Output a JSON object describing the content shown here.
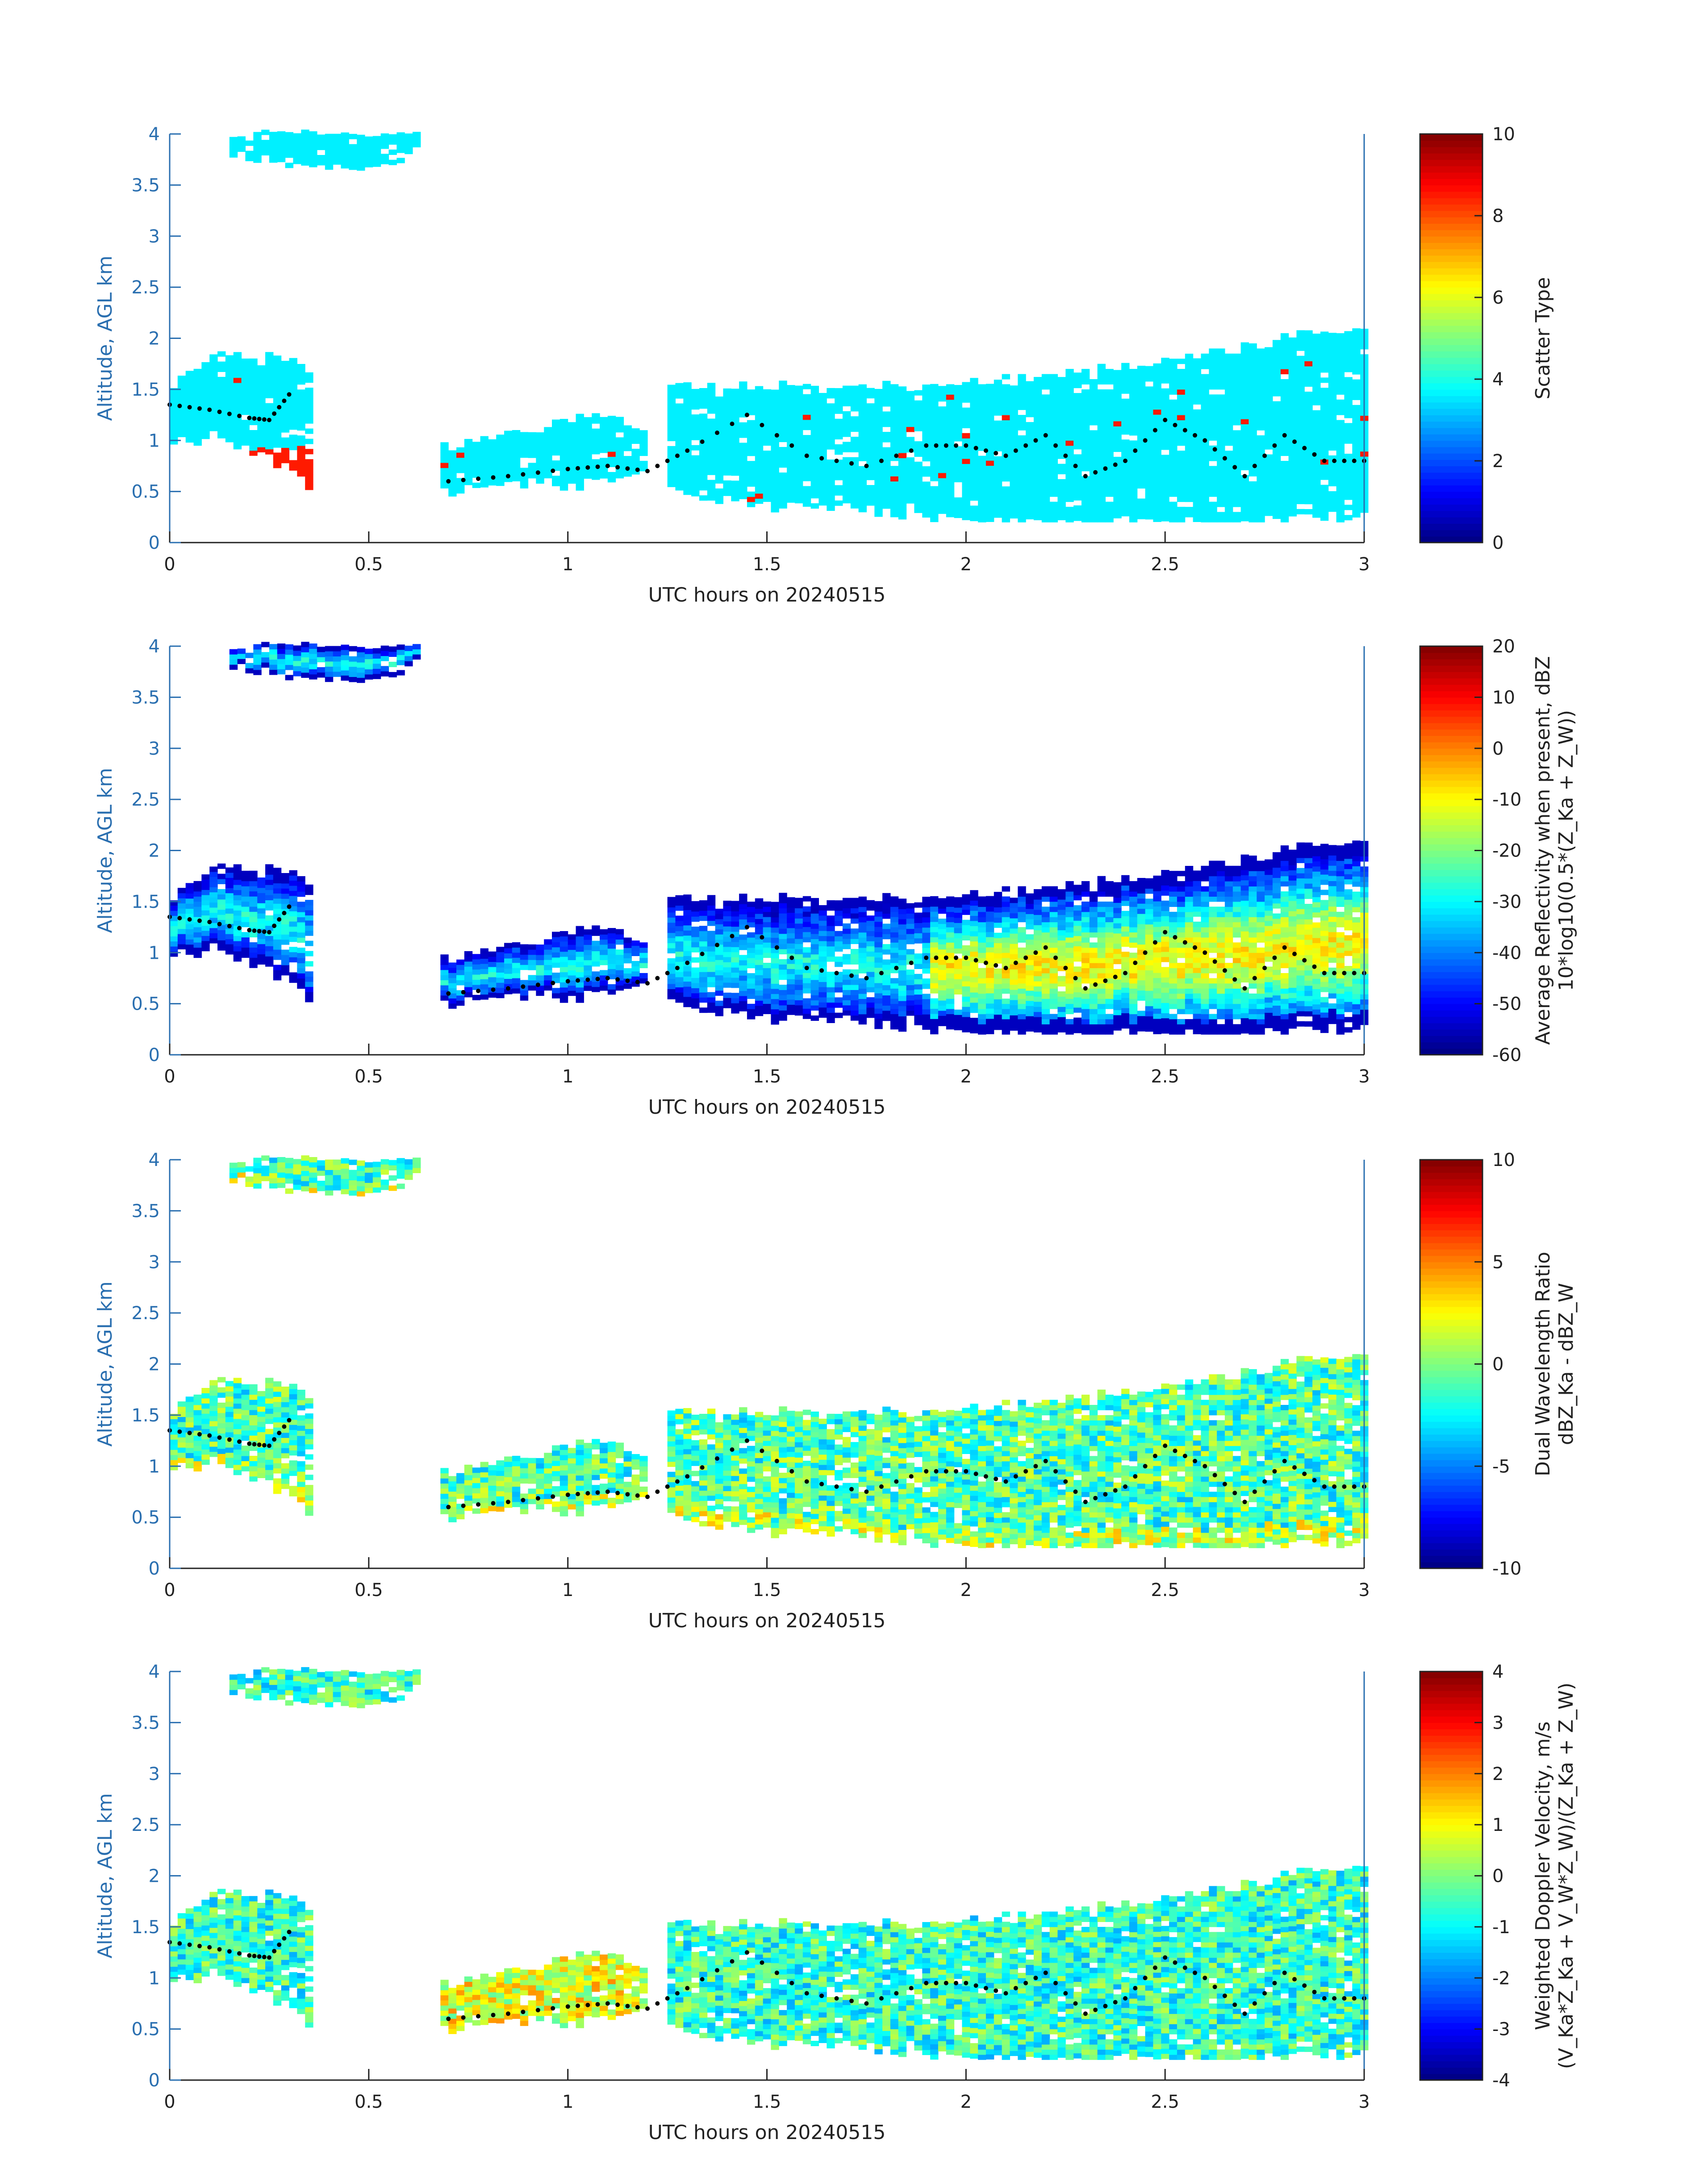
{
  "figure": {
    "panels": [
      {
        "id": "scatter",
        "chart_data": {
          "type": "heatmap",
          "title": "",
          "xlabel": "UTC hours on 20240515",
          "ylabel": "Altitude, AGL km",
          "xlim": [
            0,
            3
          ],
          "ylim": [
            0,
            4
          ],
          "xticks": [
            0,
            0.5,
            1,
            1.5,
            2,
            2.5,
            3
          ],
          "xticklabels": [
            "0",
            "0.5",
            "1",
            "1.5",
            "2",
            "2.5",
            "3"
          ],
          "yticks": [
            0,
            0.5,
            1,
            1.5,
            2,
            2.5,
            3,
            3.5,
            4
          ],
          "yticklabels": [
            "0",
            "0.5",
            "1",
            "1.5",
            "2",
            "2.5",
            "3",
            "3.5",
            "4"
          ],
          "colorbar": {
            "label_lines": [
              "Scatter Type"
            ],
            "clim": [
              0,
              10
            ],
            "ticks": [
              0,
              2,
              4,
              6,
              8,
              10
            ],
            "ticklabels": [
              "0",
              "2",
              "4",
              "6",
              "8",
              "10"
            ]
          },
          "colormap": "jet",
          "fill_mode": "scatter",
          "cloud_base_markers": true
        }
      },
      {
        "id": "reflectivity",
        "chart_data": {
          "type": "heatmap",
          "title": "",
          "xlabel": "UTC hours on 20240515",
          "ylabel": "Altitude, AGL km",
          "xlim": [
            0,
            3
          ],
          "ylim": [
            0,
            4
          ],
          "xticks": [
            0,
            0.5,
            1,
            1.5,
            2,
            2.5,
            3
          ],
          "xticklabels": [
            "0",
            "0.5",
            "1",
            "1.5",
            "2",
            "2.5",
            "3"
          ],
          "yticks": [
            0,
            0.5,
            1,
            1.5,
            2,
            2.5,
            3,
            3.5,
            4
          ],
          "yticklabels": [
            "0",
            "0.5",
            "1",
            "1.5",
            "2",
            "2.5",
            "3",
            "3.5",
            "4"
          ],
          "colorbar": {
            "label_lines": [
              "Average Reflectivity when present, dBZ",
              "10*log10(0.5*(Z_Ka + Z_W))"
            ],
            "clim": [
              -60,
              20
            ],
            "ticks": [
              -60,
              -50,
              -40,
              -30,
              -20,
              -10,
              0,
              10,
              20
            ],
            "ticklabels": [
              "-60",
              "-50",
              "-40",
              "-30",
              "-20",
              "-10",
              "0",
              "10",
              "20"
            ]
          },
          "colormap": "jet",
          "fill_mode": "refl",
          "cloud_base_markers": true
        }
      },
      {
        "id": "dwr",
        "chart_data": {
          "type": "heatmap",
          "title": "",
          "xlabel": "UTC hours on 20240515",
          "ylabel": "Altitude, AGL km",
          "xlim": [
            0,
            3
          ],
          "ylim": [
            0,
            4
          ],
          "xticks": [
            0,
            0.5,
            1,
            1.5,
            2,
            2.5,
            3
          ],
          "xticklabels": [
            "0",
            "0.5",
            "1",
            "1.5",
            "2",
            "2.5",
            "3"
          ],
          "yticks": [
            0,
            0.5,
            1,
            1.5,
            2,
            2.5,
            3,
            3.5,
            4
          ],
          "yticklabels": [
            "0",
            "0.5",
            "1",
            "1.5",
            "2",
            "2.5",
            "3",
            "3.5",
            "4"
          ],
          "colorbar": {
            "label_lines": [
              "Dual Wavelength Ratio",
              "dBZ_Ka - dBZ_W"
            ],
            "clim": [
              -10,
              10
            ],
            "ticks": [
              -10,
              -5,
              0,
              5,
              10
            ],
            "ticklabels": [
              "-10",
              "-5",
              "0",
              "5",
              "10"
            ]
          },
          "colormap": "jet",
          "fill_mode": "dwr",
          "cloud_base_markers": true
        }
      },
      {
        "id": "velocity",
        "chart_data": {
          "type": "heatmap",
          "title": "",
          "xlabel": "UTC hours on 20240515",
          "ylabel": "Altitude, AGL km",
          "xlim": [
            0,
            3
          ],
          "ylim": [
            0,
            4
          ],
          "xticks": [
            0,
            0.5,
            1,
            1.5,
            2,
            2.5,
            3
          ],
          "xticklabels": [
            "0",
            "0.5",
            "1",
            "1.5",
            "2",
            "2.5",
            "3"
          ],
          "yticks": [
            0,
            0.5,
            1,
            1.5,
            2,
            2.5,
            3,
            3.5,
            4
          ],
          "yticklabels": [
            "0",
            "0.5",
            "1",
            "1.5",
            "2",
            "2.5",
            "3",
            "3.5",
            "4"
          ],
          "colorbar": {
            "label_lines": [
              "Weighted Doppler Velocity, m/s",
              "(V_Ka*Z_Ka + V_W*Z_W)/(Z_Ka + Z_W)"
            ],
            "clim": [
              -4,
              4
            ],
            "ticks": [
              -4,
              -3,
              -2,
              -1,
              0,
              1,
              2,
              3,
              4
            ],
            "ticklabels": [
              "-4",
              "-3",
              "-2",
              "-1",
              "0",
              "1",
              "2",
              "3",
              "4"
            ]
          },
          "colormap": "jet",
          "fill_mode": "vel",
          "cloud_base_markers": true
        }
      }
    ],
    "cloud_regions": [
      {
        "name": "upper-layer",
        "t": [
          0.15,
          0.3,
          0.45,
          0.55,
          0.62
        ],
        "base": [
          3.8,
          3.7,
          3.6,
          3.7,
          3.85
        ],
        "top": [
          4.0,
          4.0,
          4.0,
          4.0,
          4.0
        ]
      },
      {
        "name": "early-low",
        "t": [
          0.0,
          0.1,
          0.2,
          0.3,
          0.35
        ],
        "base": [
          1.0,
          1.0,
          0.9,
          0.7,
          0.5
        ],
        "top": [
          1.55,
          1.8,
          1.8,
          1.8,
          1.6
        ]
      },
      {
        "name": "mid-layer",
        "t": [
          0.68,
          0.8,
          0.9,
          1.0,
          1.1,
          1.2
        ],
        "base": [
          0.5,
          0.55,
          0.6,
          0.55,
          0.6,
          0.7
        ],
        "top": [
          0.9,
          1.0,
          1.1,
          1.2,
          1.2,
          1.1
        ]
      },
      {
        "name": "late-main",
        "t": [
          1.25,
          1.5,
          1.8,
          2.0,
          2.3,
          2.5,
          2.7,
          2.85,
          3.0
        ],
        "base": [
          0.5,
          0.35,
          0.3,
          0.2,
          0.2,
          0.2,
          0.2,
          0.25,
          0.25
        ],
        "top": [
          1.5,
          1.5,
          1.5,
          1.55,
          1.65,
          1.75,
          1.9,
          2.05,
          2.05
        ]
      }
    ],
    "cloud_base_line": {
      "t": [
        0.0,
        0.1,
        0.2,
        0.25,
        0.3,
        0.7,
        0.85,
        1.0,
        1.1,
        1.2,
        1.3,
        1.45,
        1.6,
        1.75,
        1.9,
        2.0,
        2.1,
        2.2,
        2.3,
        2.4,
        2.5,
        2.6,
        2.7,
        2.8,
        2.9,
        3.0
      ],
      "alt": [
        1.35,
        1.3,
        1.22,
        1.2,
        1.45,
        0.6,
        0.65,
        0.72,
        0.75,
        0.7,
        0.9,
        1.25,
        0.85,
        0.75,
        0.95,
        0.95,
        0.85,
        1.05,
        0.65,
        0.8,
        1.2,
        1.0,
        0.65,
        1.05,
        0.8,
        0.8
      ]
    }
  }
}
